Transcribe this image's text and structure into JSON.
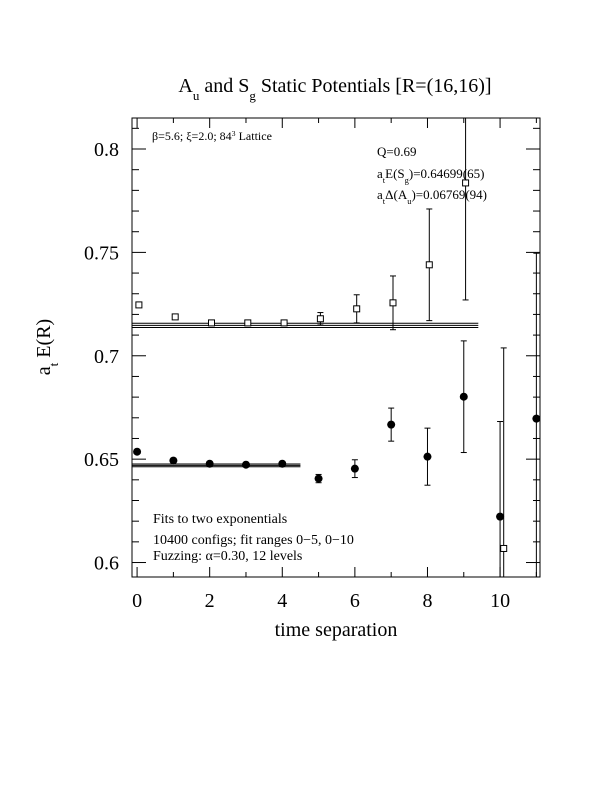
{
  "chart_data": {
    "type": "scatter",
    "title": [
      "A",
      {
        "text": "u",
        "shift": "sub"
      },
      " and S",
      {
        "text": "g",
        "shift": "sub"
      },
      " Static Potentials [R=(16,16)]"
    ],
    "x_label": [
      "time separation"
    ],
    "y_label": [
      "a",
      {
        "text": "t",
        "shift": "sub"
      },
      " E(R)"
    ],
    "xlim": [
      -0.14,
      11.1
    ],
    "ylim": [
      0.593,
      0.815
    ],
    "xticks": [
      0,
      2,
      4,
      6,
      8,
      10
    ],
    "xminorticks": [
      1,
      3,
      5,
      7,
      9,
      11
    ],
    "yticks": [
      {
        "value": 0.6,
        "label": "0.6"
      },
      0.65,
      {
        "value": 0.7,
        "label": "0.7"
      },
      0.75,
      {
        "value": 0.8,
        "label": "0.8"
      }
    ],
    "yminorticks": [
      0.61,
      0.62,
      0.63,
      0.64,
      0.66,
      0.67,
      0.68,
      0.69,
      0.71,
      0.72,
      0.73,
      0.74,
      0.76,
      0.77,
      0.78,
      0.79,
      0.81
    ],
    "series": [
      {
        "marker": "circle",
        "color": "#000000",
        "x": [
          0,
          1,
          2,
          3,
          4,
          5,
          6,
          7,
          8,
          9,
          10,
          11
        ],
        "values": [
          0.6536,
          0.6493,
          0.6478,
          0.6473,
          0.6478,
          0.6406,
          0.6454,
          0.6667,
          0.6512,
          0.6802,
          0.6222,
          0.6696
        ],
        "errors": [
          0.0008,
          0.0005,
          0.0005,
          0.0005,
          0.0006,
          0.002,
          0.0043,
          0.008,
          0.0138,
          0.027,
          0.046,
          0.08
        ]
      },
      {
        "marker": "square",
        "color": "#000000",
        "x": [
          0.05,
          1.05,
          2.05,
          3.05,
          4.05,
          5.05,
          6.05,
          7.05,
          8.05,
          9.05,
          10.1
        ],
        "values": [
          0.7246,
          0.7188,
          0.7159,
          0.7159,
          0.7159,
          0.7179,
          0.7227,
          0.7256,
          0.744,
          0.7836,
          0.6068
        ],
        "errors": [
          0.0008,
          0.0006,
          0.0005,
          0.0005,
          0.0008,
          0.003,
          0.0068,
          0.013,
          0.027,
          0.0566,
          0.097
        ]
      }
    ],
    "fits": [
      {
        "x": [
          -0.14,
          4.5
        ],
        "value": 0.64699,
        "error": 0.00065
      },
      {
        "x": [
          -0.14,
          9.4
        ],
        "value": 0.7147,
        "error": 0.001
      }
    ],
    "annotations": [
      [
        "β=5.6; ξ=2.0; 84",
        {
          "text": "3",
          "shift": "super"
        },
        " Lattice"
      ],
      [
        "Q=0.69"
      ],
      [
        "a",
        {
          "text": "t",
          "shift": "sub"
        },
        "E(S",
        {
          "text": "g",
          "shift": "sub"
        },
        ")=0.64699(65)"
      ],
      [
        "a",
        {
          "text": "t",
          "shift": "sub"
        },
        "Δ(A",
        {
          "text": "u",
          "shift": "sub"
        },
        ")=0.06769(94)"
      ],
      [
        "Fits to two exponentials"
      ],
      [
        "10400 configs; fit ranges 0−5, 0−10"
      ],
      [
        "Fuzzing: α=0.30, 12 levels"
      ]
    ]
  }
}
